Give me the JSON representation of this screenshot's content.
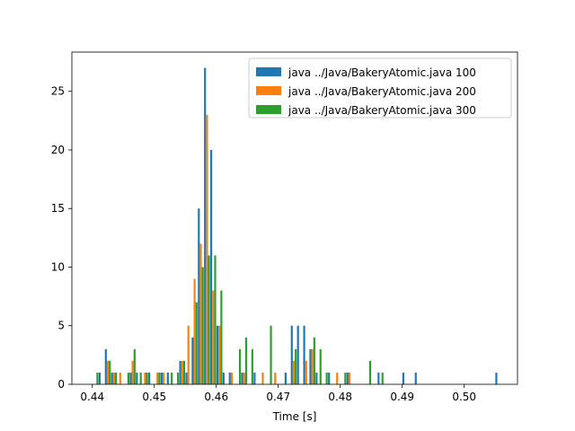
{
  "chart_data": {
    "type": "bar",
    "title": "",
    "xlabel": "Time [s]",
    "ylabel": "",
    "xlim": [
      0.4367,
      0.5086
    ],
    "ylim": [
      0,
      28.35
    ],
    "xticks": [
      "0.40",
      "0.45",
      "0.50",
      "0.44",
      "0.46",
      "0.48",
      "0.47",
      "0.49"
    ],
    "xtick_values": [
      0.44,
      0.45,
      0.46,
      0.47,
      0.48,
      0.49,
      0.5
    ],
    "xtick_labels": [
      "0.44",
      "0.45",
      "0.46",
      "0.47",
      "0.48",
      "0.49",
      "0.50"
    ],
    "yticks": [
      0,
      5,
      10,
      15,
      20,
      25
    ],
    "ytick_labels": [
      "0",
      "5",
      "10",
      "15",
      "20",
      "25"
    ],
    "grid": false,
    "legend_position": "top-right",
    "bin_width": 0.00095,
    "series": [
      {
        "name": "java ../Java/BakeryAtomic.java 100",
        "color": "#1f77b4",
        "points": [
          [
            0.4415,
            1
          ],
          [
            0.4425,
            3
          ],
          [
            0.4435,
            1
          ],
          [
            0.4465,
            1
          ],
          [
            0.4475,
            1
          ],
          [
            0.4495,
            1
          ],
          [
            0.4515,
            1
          ],
          [
            0.4525,
            1
          ],
          [
            0.4545,
            2
          ],
          [
            0.4555,
            1
          ],
          [
            0.4565,
            4
          ],
          [
            0.4575,
            15
          ],
          [
            0.4585,
            27
          ],
          [
            0.4595,
            20
          ],
          [
            0.4605,
            5
          ],
          [
            0.4615,
            1
          ],
          [
            0.4625,
            1
          ],
          [
            0.4645,
            1
          ],
          [
            0.4665,
            1
          ],
          [
            0.4715,
            1
          ],
          [
            0.4725,
            5
          ],
          [
            0.4735,
            5
          ],
          [
            0.4745,
            5
          ],
          [
            0.4755,
            3
          ],
          [
            0.4765,
            1
          ],
          [
            0.4785,
            1
          ],
          [
            0.4815,
            1
          ],
          [
            0.4865,
            1
          ],
          [
            0.4905,
            1
          ],
          [
            0.4925,
            1
          ],
          [
            0.5055,
            1
          ]
        ]
      },
      {
        "name": "java ../Java/BakeryAtomic.java 200",
        "color": "#ff7f0e",
        "points": [
          [
            0.4425,
            2
          ],
          [
            0.4435,
            1
          ],
          [
            0.4445,
            1
          ],
          [
            0.4465,
            2
          ],
          [
            0.4485,
            1
          ],
          [
            0.4505,
            1
          ],
          [
            0.4515,
            1
          ],
          [
            0.4545,
            2
          ],
          [
            0.4555,
            5
          ],
          [
            0.4565,
            9
          ],
          [
            0.4575,
            12
          ],
          [
            0.4585,
            23
          ],
          [
            0.4595,
            8
          ],
          [
            0.4605,
            5
          ],
          [
            0.4625,
            1
          ],
          [
            0.4645,
            1
          ],
          [
            0.4675,
            1
          ],
          [
            0.4695,
            1
          ],
          [
            0.4725,
            2
          ],
          [
            0.4745,
            2
          ],
          [
            0.4755,
            3
          ],
          [
            0.4795,
            1
          ],
          [
            0.4815,
            1
          ]
        ]
      },
      {
        "name": "java ../Java/BakeryAtomic.java 300",
        "color": "#2ca02c",
        "points": [
          [
            0.4405,
            1
          ],
          [
            0.4425,
            2
          ],
          [
            0.4435,
            1
          ],
          [
            0.4455,
            1
          ],
          [
            0.4465,
            3
          ],
          [
            0.4475,
            1
          ],
          [
            0.4485,
            1
          ],
          [
            0.4505,
            1
          ],
          [
            0.4525,
            1
          ],
          [
            0.4535,
            1
          ],
          [
            0.4545,
            2
          ],
          [
            0.4565,
            7
          ],
          [
            0.4575,
            10
          ],
          [
            0.4585,
            11
          ],
          [
            0.4595,
            11
          ],
          [
            0.4605,
            8
          ],
          [
            0.4635,
            3
          ],
          [
            0.4645,
            4
          ],
          [
            0.4655,
            3
          ],
          [
            0.4685,
            5
          ],
          [
            0.4725,
            3
          ],
          [
            0.4755,
            4
          ],
          [
            0.4765,
            3
          ],
          [
            0.4775,
            1
          ],
          [
            0.4805,
            1
          ],
          [
            0.4845,
            2
          ],
          [
            0.4865,
            1
          ]
        ]
      }
    ]
  }
}
